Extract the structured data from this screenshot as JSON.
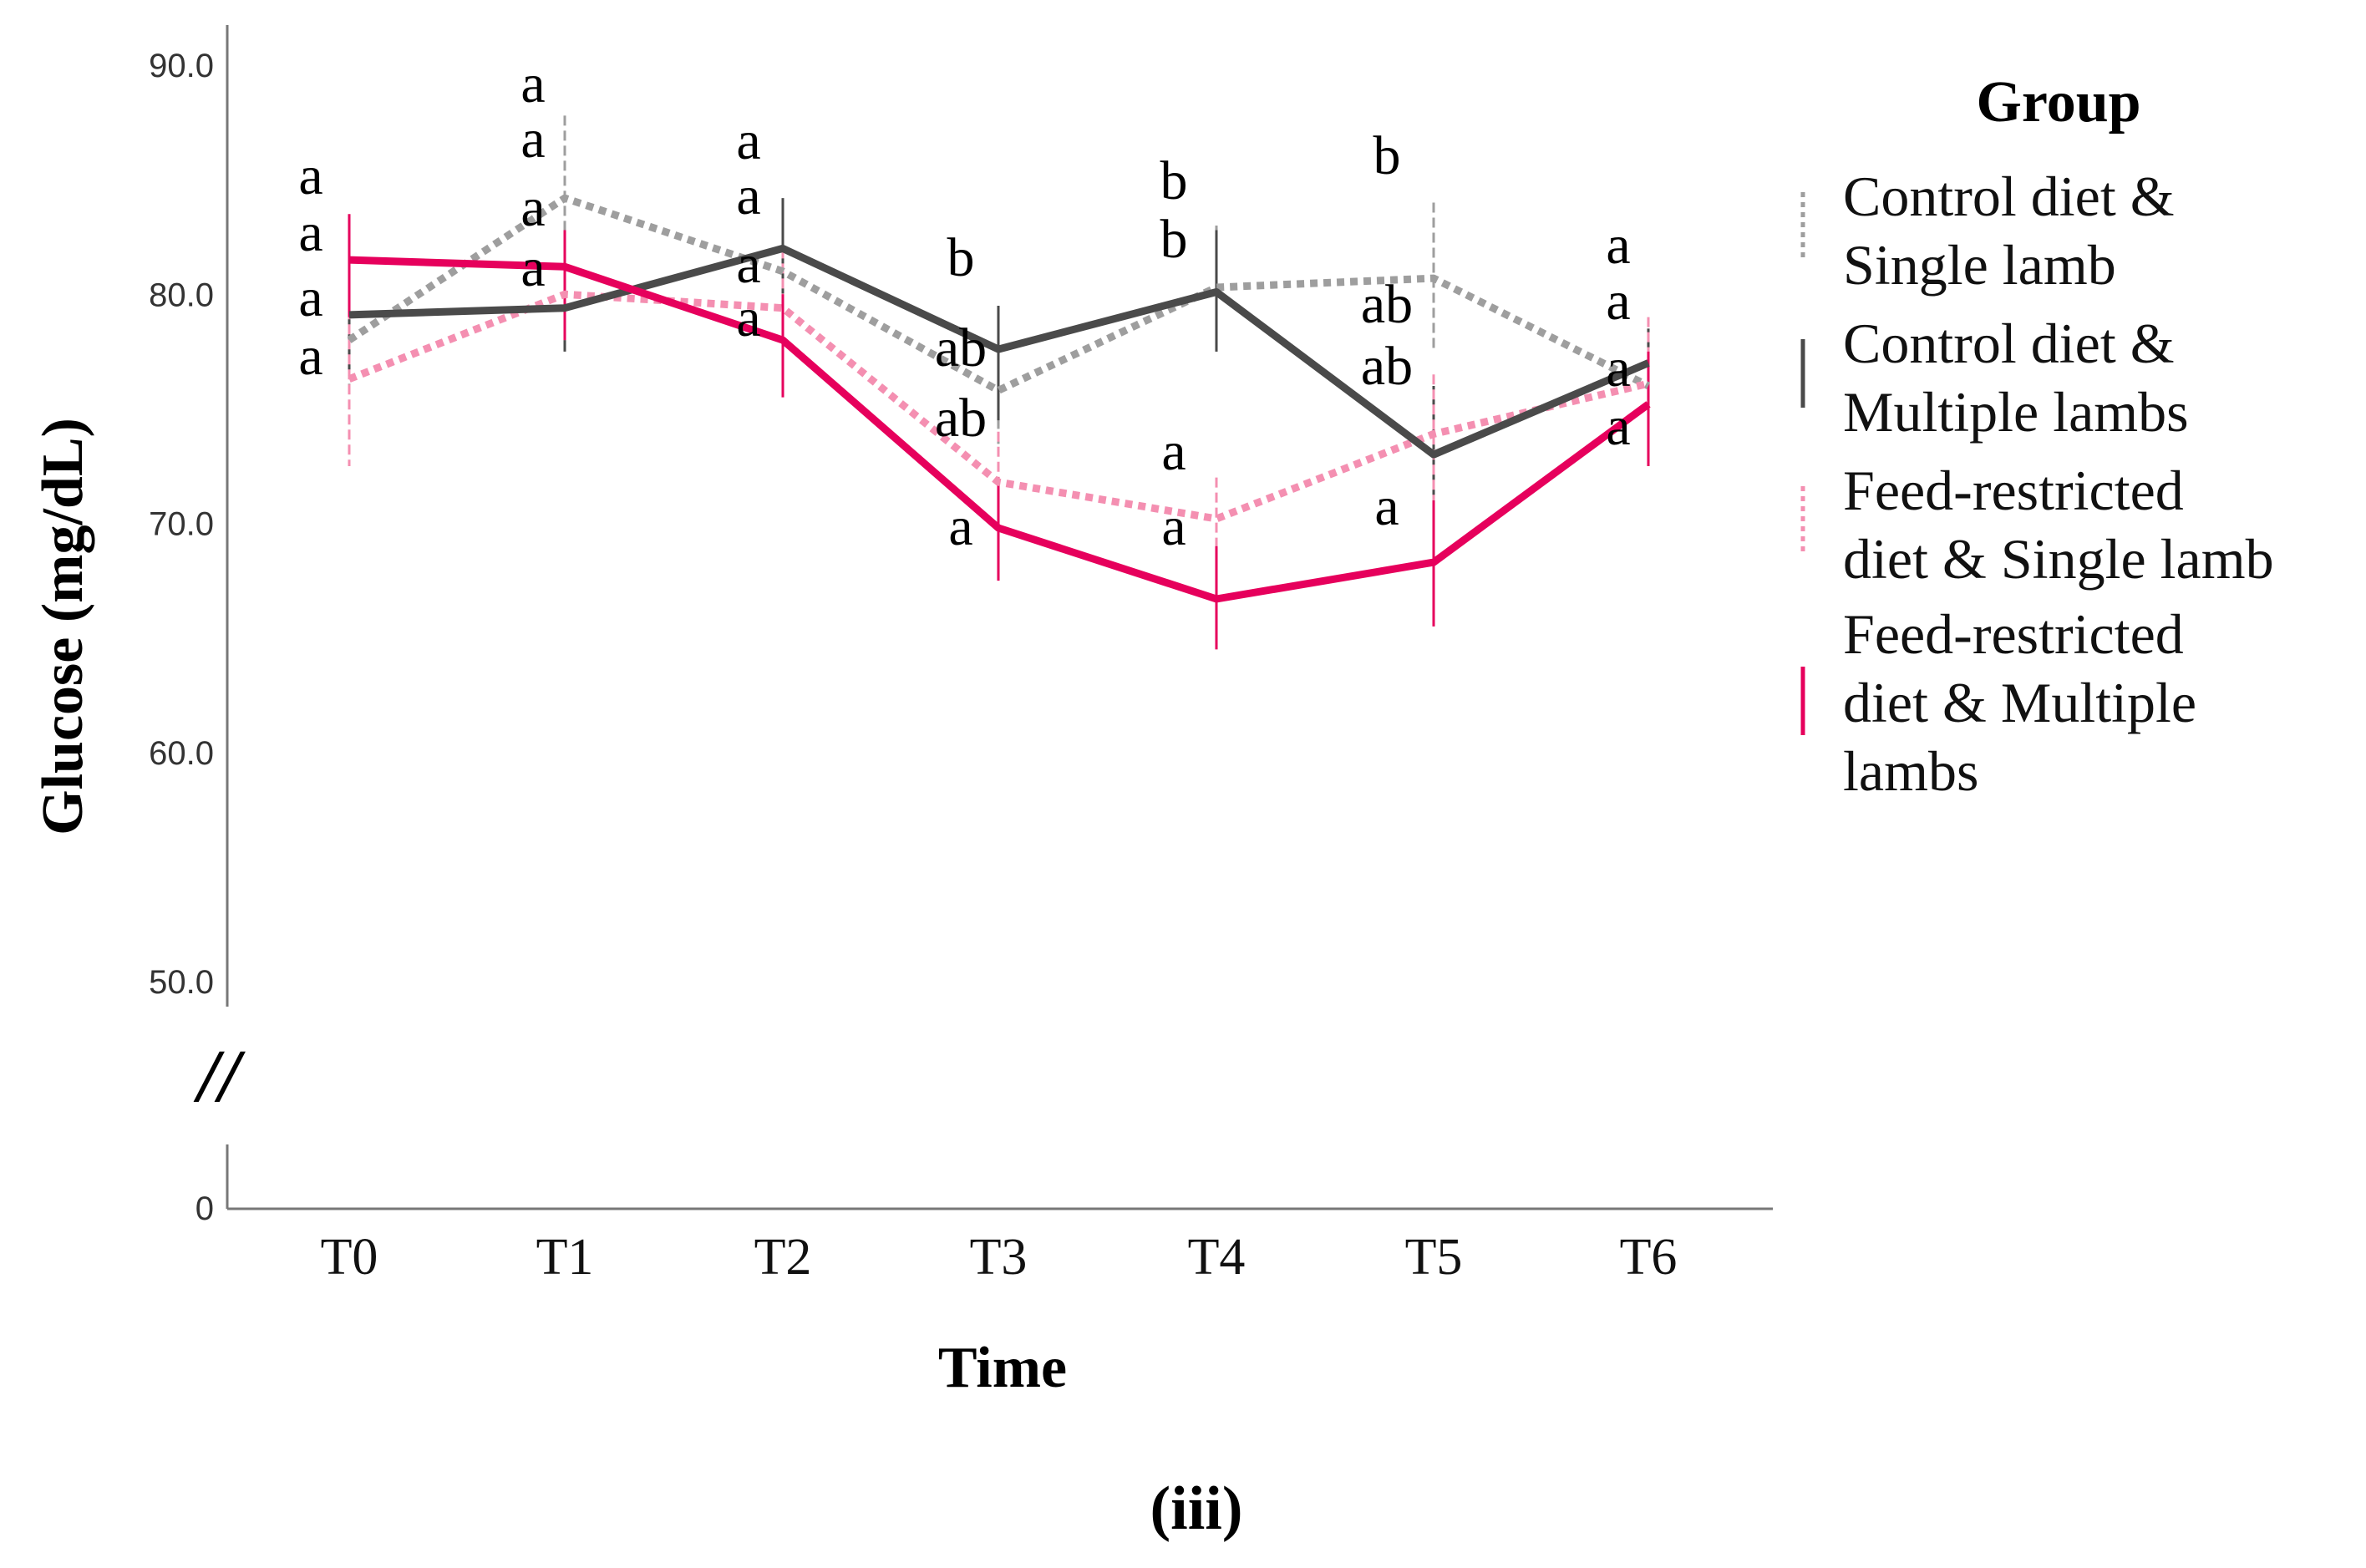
{
  "chart_data": {
    "type": "line",
    "xlabel": "Time",
    "ylabel": "Glucose (mg/dL)",
    "panel_label": "(iii)",
    "axis_break_symbol": "//",
    "categories": [
      "T0",
      "T1",
      "T2",
      "T3",
      "T4",
      "T5",
      "T6"
    ],
    "ylim": [
      50,
      90
    ],
    "yticks": [
      "90.0",
      "80.0",
      "70.0",
      "60.0",
      "50.0"
    ],
    "ytick_values": [
      90,
      80,
      70,
      60,
      50
    ],
    "ytick_zero": "0",
    "grid": false,
    "legend": {
      "title": "Group",
      "position": "right",
      "entries": [
        {
          "lines": [
            "Control diet &",
            "Single lamb"
          ]
        },
        {
          "lines": [
            "Control diet &",
            "Multiple lambs"
          ]
        },
        {
          "lines": [
            "Feed-restricted",
            "diet & Single lamb"
          ]
        },
        {
          "lines": [
            "Feed-restricted",
            "diet & Multiple",
            "lambs"
          ]
        }
      ]
    },
    "series": [
      {
        "name": "Control diet & Single lamb",
        "color": "#9e9e9e",
        "style": "dotted",
        "values": [
          78.0,
          84.2,
          81.0,
          75.8,
          80.3,
          80.7,
          76.0
        ],
        "err_low": [
          75.5,
          81.0,
          78.5,
          73.0,
          77.5,
          77.5,
          73.5
        ],
        "err_high": [
          82.0,
          87.8,
          83.5,
          78.5,
          83.0,
          84.0,
          78.5
        ]
      },
      {
        "name": "Control diet & Multiple lambs",
        "color": "#4a4a4a",
        "style": "solid",
        "values": [
          79.1,
          79.4,
          82.0,
          77.6,
          80.1,
          73.0,
          77.0
        ],
        "err_low": [
          76.5,
          77.5,
          79.5,
          74.5,
          77.5,
          70.0,
          74.5
        ],
        "err_high": [
          81.5,
          82.0,
          84.2,
          79.5,
          82.8,
          76.0,
          78.5
        ]
      },
      {
        "name": "Feed-restricted diet & Single lamb",
        "color": "#f48fb1",
        "style": "dotted",
        "values": [
          76.3,
          80.0,
          79.4,
          71.8,
          70.2,
          73.9,
          76.1
        ],
        "err_low": [
          72.5,
          78.0,
          76.5,
          69.0,
          67.5,
          71.0,
          73.5
        ],
        "err_high": [
          80.0,
          82.0,
          82.0,
          74.0,
          72.0,
          76.5,
          79.0
        ]
      },
      {
        "name": "Feed-restricted diet & Multiple lambs",
        "color": "#e6005c",
        "style": "solid",
        "values": [
          81.5,
          81.2,
          78.0,
          69.8,
          66.7,
          68.3,
          75.2
        ],
        "err_low": [
          79.0,
          78.0,
          75.5,
          67.5,
          64.5,
          65.5,
          72.5
        ],
        "err_high": [
          83.5,
          82.8,
          80.0,
          72.0,
          69.0,
          71.0,
          77.5
        ]
      }
    ],
    "annotations": [
      {
        "category": "T0",
        "labels": [
          "a",
          "a",
          "a",
          "a"
        ]
      },
      {
        "category": "T1",
        "labels": [
          "a",
          "a",
          "a",
          "a"
        ]
      },
      {
        "category": "T2",
        "labels": [
          "a",
          "a",
          "a",
          "a"
        ]
      },
      {
        "category": "T3",
        "labels": [
          "b",
          "ab",
          "ab",
          "a"
        ]
      },
      {
        "category": "T4",
        "labels": [
          "b",
          "b",
          "a",
          "a"
        ]
      },
      {
        "category": "T5",
        "labels": [
          "b",
          "ab",
          "ab",
          "a"
        ]
      },
      {
        "category": "T6",
        "labels": [
          "a",
          "a",
          "a",
          "a"
        ]
      }
    ]
  }
}
